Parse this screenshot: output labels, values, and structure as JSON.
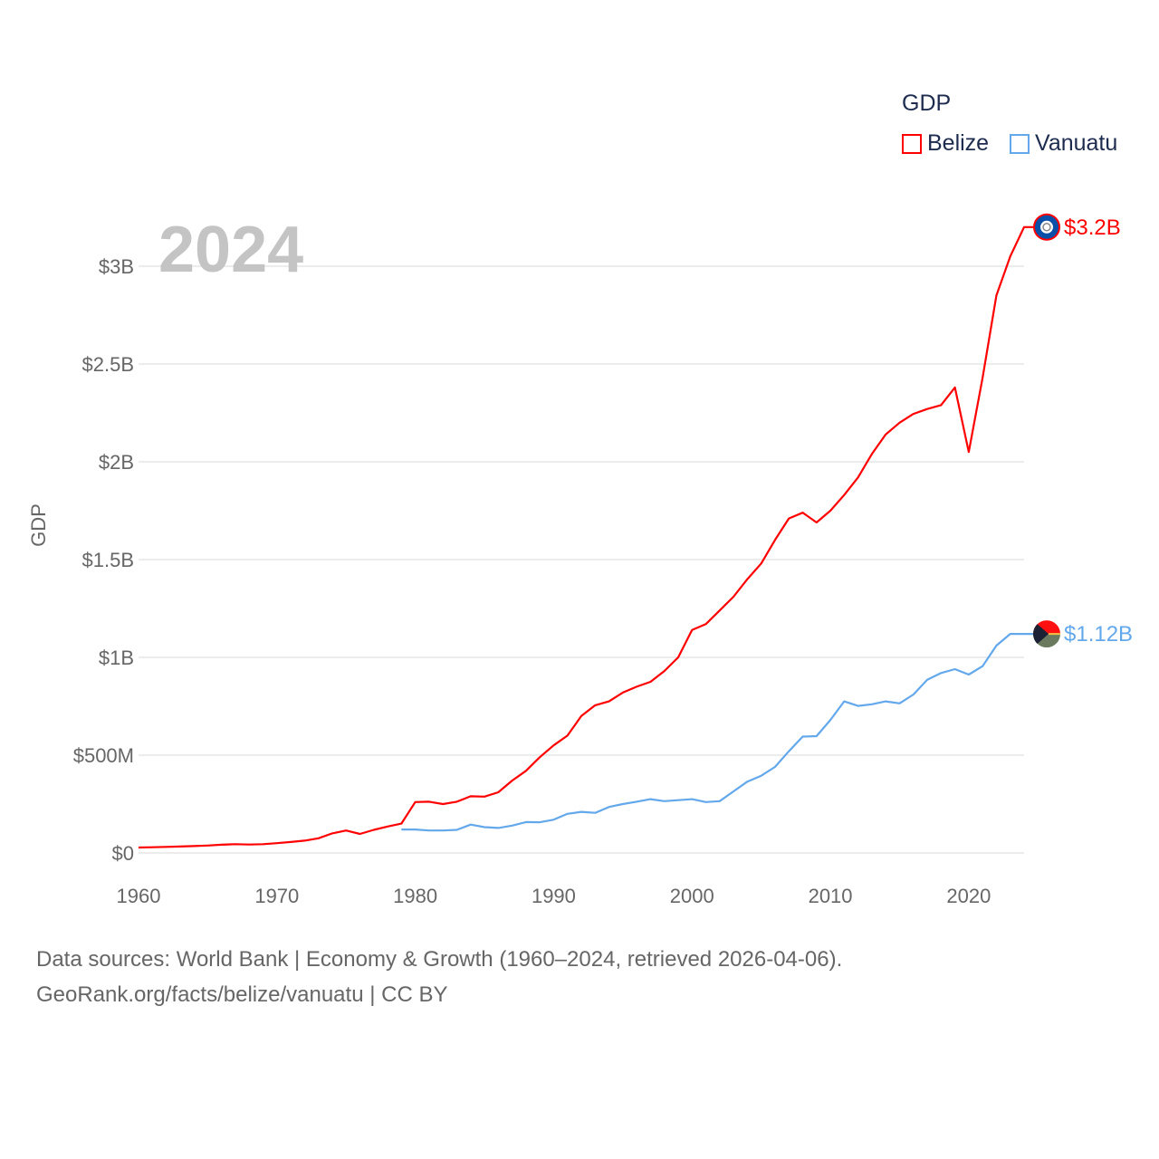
{
  "chart_data": {
    "type": "line",
    "title": "GDP",
    "year_label": "2024",
    "ylabel": "GDP",
    "xlabel": "",
    "ylim": [
      0,
      3.3
    ],
    "xlim": [
      1960,
      2024
    ],
    "grid": true,
    "legend_placement": "top-right",
    "y_ticks": [
      {
        "v": 0,
        "label": "$0"
      },
      {
        "v": 0.5,
        "label": "$500M"
      },
      {
        "v": 1,
        "label": "$1B"
      },
      {
        "v": 1.5,
        "label": "$1.5B"
      },
      {
        "v": 2,
        "label": "$2B"
      },
      {
        "v": 2.5,
        "label": "$2.5B"
      },
      {
        "v": 3,
        "label": "$3B"
      }
    ],
    "x_ticks": [
      {
        "v": 1960,
        "label": "1960"
      },
      {
        "v": 1970,
        "label": "1970"
      },
      {
        "v": 1980,
        "label": "1980"
      },
      {
        "v": 1990,
        "label": "1990"
      },
      {
        "v": 2000,
        "label": "2000"
      },
      {
        "v": 2010,
        "label": "2010"
      },
      {
        "v": 2020,
        "label": "2020"
      }
    ],
    "units": "billion USD",
    "series": [
      {
        "name": "Belize",
        "color": "#ff0000",
        "end_label": "$3.2B",
        "flag": "belize-flag",
        "start_year": 1960,
        "values": [
          0.028,
          0.029,
          0.031,
          0.033,
          0.035,
          0.038,
          0.042,
          0.045,
          0.043,
          0.045,
          0.05,
          0.056,
          0.063,
          0.075,
          0.1,
          0.115,
          0.097,
          0.118,
          0.135,
          0.15,
          0.26,
          0.262,
          0.25,
          0.262,
          0.29,
          0.288,
          0.31,
          0.37,
          0.42,
          0.49,
          0.55,
          0.6,
          0.7,
          0.755,
          0.775,
          0.82,
          0.85,
          0.875,
          0.93,
          1.0,
          1.14,
          1.17,
          1.24,
          1.31,
          1.4,
          1.48,
          1.6,
          1.71,
          1.74,
          1.69,
          1.75,
          1.83,
          1.92,
          2.04,
          2.14,
          2.2,
          2.245,
          2.27,
          2.29,
          2.38,
          2.05,
          2.43,
          2.85,
          3.05,
          3.2
        ]
      },
      {
        "name": "Vanuatu",
        "color": "#64a8ec",
        "end_label": "$1.12B",
        "flag": "vanuatu-flag",
        "start_year": 1979,
        "values": [
          0.12,
          0.12,
          0.115,
          0.115,
          0.118,
          0.145,
          0.132,
          0.128,
          0.14,
          0.158,
          0.157,
          0.17,
          0.2,
          0.21,
          0.205,
          0.235,
          0.25,
          0.262,
          0.275,
          0.265,
          0.27,
          0.275,
          0.26,
          0.265,
          0.315,
          0.365,
          0.395,
          0.44,
          0.52,
          0.595,
          0.597,
          0.68,
          0.775,
          0.752,
          0.76,
          0.775,
          0.765,
          0.81,
          0.885,
          0.92,
          0.94,
          0.912,
          0.955,
          1.06,
          1.12,
          1.12
        ]
      }
    ]
  },
  "legend": {
    "title": "GDP",
    "items": [
      "Belize",
      "Vanuatu"
    ]
  },
  "footer": {
    "line1": "Data sources: World Bank | Economy & Growth (1960–2024, retrieved 2026-04-06).",
    "line2": "GeoRank.org/facts/belize/vanuatu | CC BY"
  }
}
